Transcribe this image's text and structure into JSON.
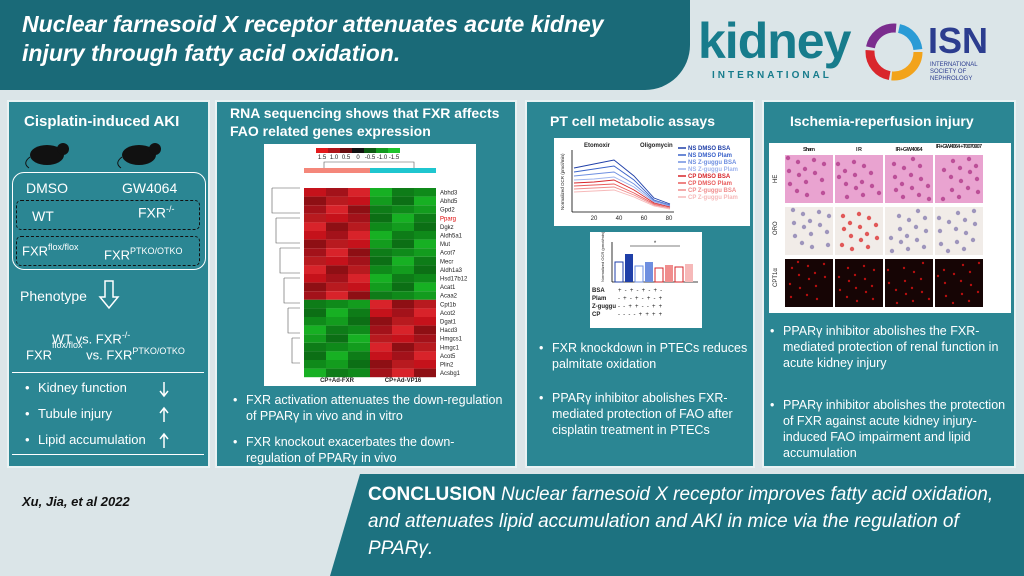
{
  "header": {
    "title": "Nuclear farnesoid X receptor attenuates acute kidney injury through fatty acid oxidation.",
    "journal_logo": "kidney",
    "journal_logo_sub": "INTERNATIONAL",
    "society_logo": "ISN",
    "society_logo_sub": "INTERNATIONAL SOCIETY OF NEPHROLOGY"
  },
  "cisplatin_panel": {
    "title": "Cisplatin-induced  AKI",
    "treatment_1": "DMSO",
    "treatment_2": "GW4064",
    "genotype_wt": "WT",
    "genotype_ko": {
      "base": "FXR",
      "sup": "-/-"
    },
    "genotype_flox": {
      "base": "FXR",
      "sup": "flox/flox"
    },
    "genotype_ptko": {
      "base": "FXR",
      "sup": "PTKO/OTKO"
    },
    "phenotype": "Phenotype",
    "comparison_1": {
      "base": "WT vs. FXR",
      "sup": "-/-"
    },
    "comparison_2": {
      "base_1": "FXR",
      "sup_1": "flox/flox",
      "base_2": "vs. FXR",
      "sup_2": "PTKO/OTKO"
    },
    "outcomes": [
      "Kidney function",
      "Tubule injury",
      "Lipid accumulation"
    ]
  },
  "rnaseq_panel": {
    "title": "RNA sequencing shows that FXR affects FAO related genes expression",
    "scale": [
      "1.5",
      "1.0",
      "0.5",
      "0",
      "-0.5",
      "-1.0",
      "-1.5"
    ],
    "genes": [
      "Abhd3",
      "Abhd5",
      "Gpd2",
      "Pparg",
      "Dgkz",
      "Aldh5a1",
      "Mut",
      "Acot7",
      "Mecr",
      "Aldh1a3",
      "Hsd17b12",
      "Acat1",
      "Acaa2",
      "Cpt1b",
      "Acot2",
      "Dgat1",
      "Hacd3",
      "Hmgcs1",
      "Hmgc1",
      "Acot5",
      "Plin2",
      "Acsbg1"
    ],
    "groups": [
      "CP+Ad-FXR",
      "CP+Ad-VP16"
    ],
    "bullets": [
      "FXR activation attenuates the down-regulation  of PPARγ in vivo and in vitro",
      "FXR knockout exacerbates the down-regulation of PPARγ in vivo"
    ]
  },
  "pt_panel": {
    "title": "PT  cell metabolic assays",
    "annotations": [
      "Etomoxir",
      "Oligomycin"
    ],
    "y_label": "Normalized OCR (pmol/min)",
    "x_ticks": [
      "20",
      "40",
      "60",
      "80"
    ],
    "legend": [
      "NS DMSO BSA",
      "NS DMSO Plam",
      "NS Z-guggu BSA",
      "NS Z-guggu Plam",
      "CP DMSO BSA",
      "CP DMSO Plam",
      "CP Z-guggu BSA",
      "CP Z-guggu Plam"
    ],
    "bar_y_label": "Normalized OCR (pmol/min)",
    "bar_rows": [
      {
        "label": "BSA",
        "signs": "+ - + - + - + -"
      },
      {
        "label": "Plam",
        "signs": "- + - + - + - +"
      },
      {
        "label": "Z-guggu",
        "signs": "- - + + - - + +"
      },
      {
        "label": "CP",
        "signs": "- - - - + + + +"
      }
    ],
    "significance": "*",
    "bullets": [
      "FXR knockdown in PTECs reduces palmitate oxidation",
      "PPARγ inhibitor abolishes FXR-mediated protection of FAO after cisplatin treatment in PTECs"
    ]
  },
  "ir_panel": {
    "title": "Ischemia-reperfusion injury",
    "columns": [
      "Sham",
      "IR",
      "IR+GW4064",
      "IR+GW4064 +T0070907"
    ],
    "rows": [
      "HE",
      "ORO",
      "CPT1α"
    ],
    "bullets": [
      "PPARγ inhibitor abolishes the FXR-mediated protection of renal function in acute kidney injury",
      "PPARγ inhibitor abolishes the protection of FXR against acute kidney injury-induced FAO impairment and lipid accumulation"
    ]
  },
  "citation": "Xu, Jia, et al 2022",
  "conclusion": {
    "label": "CONCLUSION",
    "text": "Nuclear  farnesoid X receptor improves fatty acid oxidation, and attenuates lipid accumulation and AKI in mice via the regulation of PPARγ."
  }
}
